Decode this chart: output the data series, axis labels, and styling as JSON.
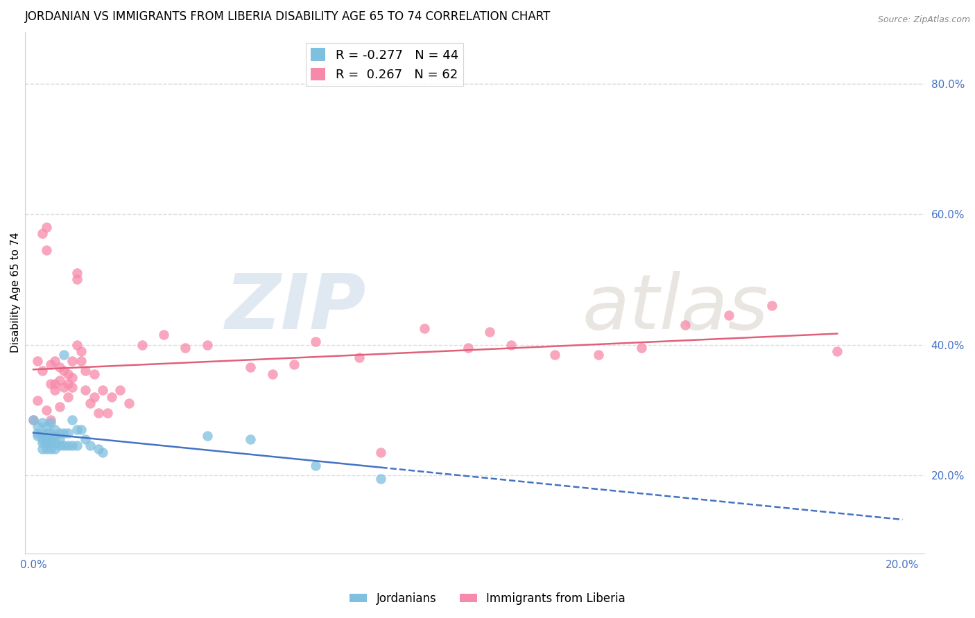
{
  "title": "JORDANIAN VS IMMIGRANTS FROM LIBERIA DISABILITY AGE 65 TO 74 CORRELATION CHART",
  "source": "Source: ZipAtlas.com",
  "ylabel": "Disability Age 65 to 74",
  "xlim": [
    -0.002,
    0.205
  ],
  "ylim": [
    0.08,
    0.88
  ],
  "jordanians_color": "#7fbfdf",
  "liberia_color": "#f78aaa",
  "jordanians_R": -0.277,
  "jordanians_N": 44,
  "liberia_R": 0.267,
  "liberia_N": 62,
  "legend_label_1": "Jordanians",
  "legend_label_2": "Immigrants from Liberia",
  "watermark": "ZIPatlas",
  "jordanians_x": [
    0.0,
    0.001,
    0.001,
    0.001,
    0.002,
    0.002,
    0.002,
    0.002,
    0.002,
    0.003,
    0.003,
    0.003,
    0.003,
    0.003,
    0.004,
    0.004,
    0.004,
    0.004,
    0.004,
    0.005,
    0.005,
    0.005,
    0.005,
    0.006,
    0.006,
    0.006,
    0.007,
    0.007,
    0.007,
    0.008,
    0.008,
    0.009,
    0.009,
    0.01,
    0.01,
    0.011,
    0.012,
    0.013,
    0.015,
    0.016,
    0.04,
    0.05,
    0.065,
    0.08
  ],
  "jordanians_y": [
    0.285,
    0.275,
    0.265,
    0.26,
    0.28,
    0.265,
    0.255,
    0.25,
    0.24,
    0.275,
    0.265,
    0.255,
    0.25,
    0.24,
    0.28,
    0.265,
    0.255,
    0.25,
    0.24,
    0.27,
    0.26,
    0.25,
    0.24,
    0.265,
    0.255,
    0.245,
    0.385,
    0.265,
    0.245,
    0.265,
    0.245,
    0.285,
    0.245,
    0.27,
    0.245,
    0.27,
    0.255,
    0.245,
    0.24,
    0.235,
    0.26,
    0.255,
    0.215,
    0.195
  ],
  "liberia_x": [
    0.0,
    0.001,
    0.001,
    0.002,
    0.002,
    0.003,
    0.003,
    0.003,
    0.004,
    0.004,
    0.004,
    0.005,
    0.005,
    0.005,
    0.006,
    0.006,
    0.006,
    0.007,
    0.007,
    0.008,
    0.008,
    0.008,
    0.009,
    0.009,
    0.009,
    0.01,
    0.01,
    0.011,
    0.011,
    0.012,
    0.012,
    0.013,
    0.014,
    0.014,
    0.015,
    0.016,
    0.017,
    0.018,
    0.02,
    0.022,
    0.025,
    0.03,
    0.035,
    0.04,
    0.05,
    0.055,
    0.06,
    0.065,
    0.075,
    0.08,
    0.09,
    0.1,
    0.105,
    0.11,
    0.12,
    0.13,
    0.14,
    0.15,
    0.16,
    0.17,
    0.185,
    0.01
  ],
  "liberia_y": [
    0.285,
    0.315,
    0.375,
    0.36,
    0.57,
    0.58,
    0.545,
    0.3,
    0.37,
    0.34,
    0.285,
    0.375,
    0.34,
    0.33,
    0.365,
    0.345,
    0.305,
    0.36,
    0.335,
    0.355,
    0.34,
    0.32,
    0.375,
    0.35,
    0.335,
    0.51,
    0.4,
    0.39,
    0.375,
    0.33,
    0.36,
    0.31,
    0.355,
    0.32,
    0.295,
    0.33,
    0.295,
    0.32,
    0.33,
    0.31,
    0.4,
    0.415,
    0.395,
    0.4,
    0.365,
    0.355,
    0.37,
    0.405,
    0.38,
    0.235,
    0.425,
    0.395,
    0.42,
    0.4,
    0.385,
    0.385,
    0.395,
    0.43,
    0.445,
    0.46,
    0.39,
    0.5
  ],
  "grid_color": "#dddddd",
  "title_fontsize": 12,
  "axis_label_fontsize": 11,
  "tick_fontsize": 11,
  "right_tick_color": "#4472c4",
  "bottom_tick_color": "#4472c4"
}
